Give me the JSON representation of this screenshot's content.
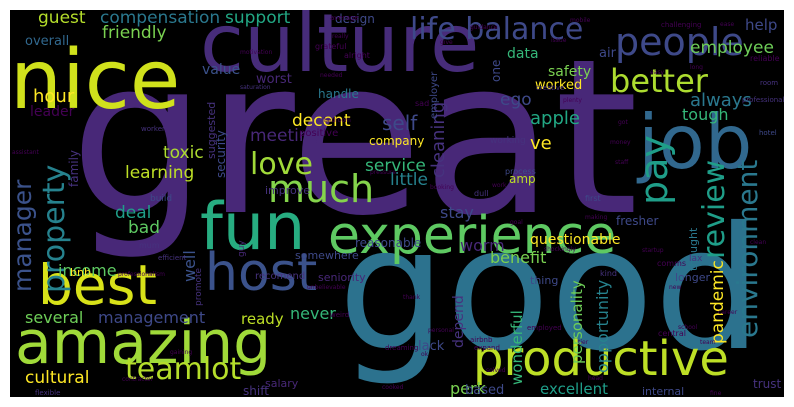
{
  "words": [
    {
      "text": "great",
      "color": "#482878"
    },
    {
      "text": "good",
      "color": "#2c728e"
    },
    {
      "text": "culture",
      "color": "#472c7a"
    },
    {
      "text": "nice",
      "color": "#d0e11c"
    },
    {
      "text": "job",
      "color": "#31688e"
    },
    {
      "text": "fun",
      "color": "#27ad81"
    },
    {
      "text": "experience",
      "color": "#5ec962"
    },
    {
      "text": "host",
      "color": "#3b528b"
    },
    {
      "text": "best",
      "color": "#d8e219"
    },
    {
      "text": "amazing",
      "color": "#a0da39"
    },
    {
      "text": "productive",
      "color": "#bddf26"
    },
    {
      "text": "people",
      "color": "#3e4989"
    },
    {
      "text": "life balance",
      "color": "#3e4989"
    },
    {
      "text": "better",
      "color": "#addc30"
    },
    {
      "text": "pay",
      "color": "#1f9e89"
    },
    {
      "text": "much",
      "color": "#84d44b"
    },
    {
      "text": "teamlot",
      "color": "#b5de2b"
    },
    {
      "text": "review",
      "color": "#1f9e89"
    },
    {
      "text": "environment",
      "color": "#2a788e"
    },
    {
      "text": "property",
      "color": "#26828e"
    },
    {
      "text": "manager",
      "color": "#3b528b"
    },
    {
      "text": "love",
      "color": "#a0da39"
    },
    {
      "text": "compensation",
      "color": "#2a788e"
    },
    {
      "text": "support",
      "color": "#22a884"
    },
    {
      "text": "guest",
      "color": "#b5de2b"
    },
    {
      "text": "friendly",
      "color": "#7ad151"
    },
    {
      "text": "employee",
      "color": "#6ece58"
    },
    {
      "text": "help",
      "color": "#3e4989"
    },
    {
      "text": "always",
      "color": "#2a788e"
    },
    {
      "text": "tough",
      "color": "#35b779"
    },
    {
      "text": "hour",
      "color": "#fde725"
    },
    {
      "text": "leader",
      "color": "#440154"
    },
    {
      "text": "meeting",
      "color": "#482878"
    },
    {
      "text": "decent",
      "color": "#fde725"
    },
    {
      "text": "toxic",
      "color": "#addc30"
    },
    {
      "text": "learning",
      "color": "#bddf26"
    },
    {
      "text": "deal",
      "color": "#1f9e89"
    },
    {
      "text": "bad",
      "color": "#5ec962"
    },
    {
      "text": "service",
      "color": "#35b779"
    },
    {
      "text": "little",
      "color": "#26828e"
    },
    {
      "text": "apple",
      "color": "#22a884"
    },
    {
      "text": "self",
      "color": "#3e4989"
    },
    {
      "text": "cleaning",
      "color": "#46327e"
    },
    {
      "text": "ve",
      "color": "#fde725"
    },
    {
      "text": "ego",
      "color": "#3e4989"
    },
    {
      "text": "income",
      "color": "#5ec962"
    },
    {
      "text": "well",
      "color": "#3b528b"
    },
    {
      "text": "benefit",
      "color": "#7ad151"
    },
    {
      "text": "worm",
      "color": "#482878"
    },
    {
      "text": "stay",
      "color": "#3e4989"
    },
    {
      "text": "questionable",
      "color": "#fde725"
    },
    {
      "text": "opportunity",
      "color": "#26828e"
    },
    {
      "text": "pandemic",
      "color": "#fde725"
    },
    {
      "text": "several",
      "color": "#6ece58"
    },
    {
      "text": "management",
      "color": "#3e4989"
    },
    {
      "text": "ready",
      "color": "#bddf26"
    },
    {
      "text": "never",
      "color": "#35b779"
    },
    {
      "text": "depend",
      "color": "#46327e"
    },
    {
      "text": "wonderful",
      "color": "#35b779"
    },
    {
      "text": "personality",
      "color": "#6ece58"
    },
    {
      "text": "cultural",
      "color": "#fde725"
    },
    {
      "text": "perk",
      "color": "#7ad151"
    },
    {
      "text": "excellent",
      "color": "#1f9e89"
    },
    {
      "text": "lack",
      "color": "#3e4989"
    },
    {
      "text": "based",
      "color": "#3e4989"
    },
    {
      "text": "shift",
      "color": "#46327e"
    },
    {
      "text": "salary",
      "color": "#482878"
    },
    {
      "text": "design",
      "color": "#3e4989"
    },
    {
      "text": "overall",
      "color": "#31688e"
    },
    {
      "text": "data",
      "color": "#35b779"
    },
    {
      "text": "air",
      "color": "#3e4989"
    },
    {
      "text": "safety",
      "color": "#7ad151"
    },
    {
      "text": "worked",
      "color": "#fde725"
    },
    {
      "text": "value",
      "color": "#3b528b"
    },
    {
      "text": "worst",
      "color": "#482878"
    },
    {
      "text": "handle",
      "color": "#2a788e"
    },
    {
      "text": "company",
      "color": "#fde725"
    },
    {
      "text": "family",
      "color": "#46327e"
    },
    {
      "text": "security",
      "color": "#3e4989"
    },
    {
      "text": "suggested",
      "color": "#46327e"
    },
    {
      "text": "one",
      "color": "#3e4989"
    },
    {
      "text": "amp",
      "color": "#bddf26"
    },
    {
      "text": "reasonable",
      "color": "#3e4989"
    },
    {
      "text": "fresher",
      "color": "#3e4989"
    },
    {
      "text": "thought",
      "color": "#2a788e"
    },
    {
      "text": "longer",
      "color": "#3e4989"
    },
    {
      "text": "seniority",
      "color": "#482878"
    },
    {
      "text": "somewhere",
      "color": "#3e4989"
    },
    {
      "text": "positive",
      "color": "#440154"
    },
    {
      "text": "improve",
      "color": "#46327e"
    },
    {
      "text": "recomend",
      "color": "#46327e"
    },
    {
      "text": "bnb",
      "color": "#fde725"
    },
    {
      "text": "guy",
      "color": "#482878"
    },
    {
      "text": "build",
      "color": "#3e4989"
    },
    {
      "text": "promote",
      "color": "#46327e"
    },
    {
      "text": "thing",
      "color": "#3e4989"
    },
    {
      "text": "internal",
      "color": "#3e4989"
    },
    {
      "text": "trust",
      "color": "#46327e"
    },
    {
      "text": "employer",
      "color": "#3e4989"
    },
    {
      "text": "sad",
      "color": "#440154"
    },
    {
      "text": "lax",
      "color": "#46327e"
    },
    {
      "text": "working",
      "color": "#46327e"
    },
    {
      "text": "process",
      "color": "#3e4989"
    },
    {
      "text": "comms",
      "color": "#440154"
    },
    {
      "text": "dull",
      "color": "#46327e"
    },
    {
      "text": "first",
      "color": "#3e4989"
    },
    {
      "text": "reliable",
      "color": "#440154"
    },
    {
      "text": "room",
      "color": "#46327e"
    },
    {
      "text": "hotel",
      "color": "#3e4989"
    },
    {
      "text": "kind",
      "color": "#46327e"
    },
    {
      "text": "grateful",
      "color": "#440154"
    },
    {
      "text": "alright",
      "color": "#440154"
    },
    {
      "text": "worker",
      "color": "#46327e"
    },
    {
      "text": "mum",
      "color": "#46327e"
    },
    {
      "text": "employed",
      "color": "#440154"
    },
    {
      "text": "central",
      "color": "#440154"
    },
    {
      "text": "airbnb",
      "color": "#440154"
    },
    {
      "text": "flexible",
      "color": "#46327e"
    },
    {
      "text": "expand",
      "color": "#440154"
    },
    {
      "text": "dreaming",
      "color": "#440154"
    },
    {
      "text": "weird",
      "color": "#440154"
    },
    {
      "text": "average",
      "color": "#440154"
    },
    {
      "text": "challenging",
      "color": "#440154"
    },
    {
      "text": "professional",
      "color": "#46327e"
    },
    {
      "text": "creative",
      "color": "#46327e"
    },
    {
      "text": "motivation",
      "color": "#440154"
    },
    {
      "text": "saturation",
      "color": "#46327e"
    },
    {
      "text": "needed",
      "color": "#440154"
    },
    {
      "text": "contractor",
      "color": "#440154"
    },
    {
      "text": "efficient",
      "color": "#46327e"
    },
    {
      "text": "bedroom",
      "color": "#440154"
    },
    {
      "text": "ease",
      "color": "#440154"
    },
    {
      "text": "school",
      "color": "#440154"
    },
    {
      "text": "really",
      "color": "#440154"
    },
    {
      "text": "give",
      "color": "#440154"
    },
    {
      "text": "plenty",
      "color": "#440154"
    },
    {
      "text": "got",
      "color": "#440154"
    },
    {
      "text": "issue",
      "color": "#440154"
    },
    {
      "text": "money",
      "color": "#440154"
    },
    {
      "text": "work",
      "color": "#440154"
    },
    {
      "text": "startup",
      "color": "#440154"
    },
    {
      "text": "shockingly",
      "color": "#440154"
    },
    {
      "text": "making",
      "color": "#440154"
    },
    {
      "text": "new",
      "color": "#440154"
    },
    {
      "text": "unbelievable",
      "color": "#440154"
    },
    {
      "text": "ok",
      "color": "#440154"
    },
    {
      "text": "personal",
      "color": "#440154"
    },
    {
      "text": "gaining",
      "color": "#440154"
    },
    {
      "text": "solved",
      "color": "#440154"
    },
    {
      "text": "head",
      "color": "#440154"
    },
    {
      "text": "team",
      "color": "#440154"
    },
    {
      "text": "career",
      "color": "#440154"
    },
    {
      "text": "assistant",
      "color": "#440154"
    },
    {
      "text": "professionalism",
      "color": "#440154"
    },
    {
      "text": "fine",
      "color": "#440154"
    },
    {
      "text": "cooked",
      "color": "#440154"
    },
    {
      "text": "thank",
      "color": "#440154"
    },
    {
      "text": "tier",
      "color": "#440154"
    },
    {
      "text": "easy",
      "color": "#440154"
    },
    {
      "text": "long",
      "color": "#440154"
    },
    {
      "text": "mobile",
      "color": "#440154"
    },
    {
      "text": "guidance",
      "color": "#440154"
    },
    {
      "text": "booking",
      "color": "#440154"
    },
    {
      "text": "pressure",
      "color": "#440154"
    },
    {
      "text": "goal",
      "color": "#440154"
    },
    {
      "text": "staff",
      "color": "#440154"
    },
    {
      "text": "clean",
      "color": "#440154"
    },
    {
      "text": "perfect",
      "color": "#440154"
    }
  ]
}
